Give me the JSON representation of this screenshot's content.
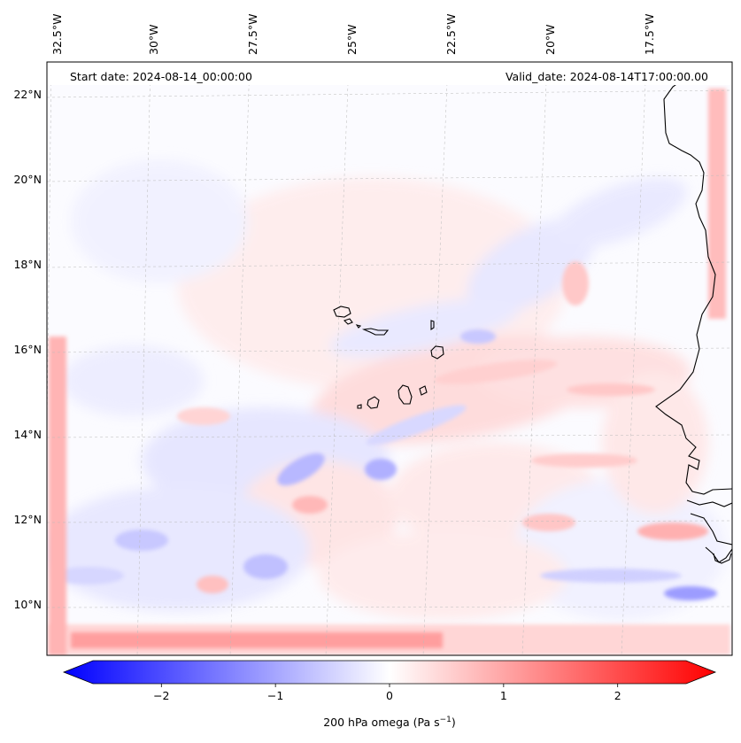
{
  "map": {
    "header": {
      "start_label": "Start date: 2024-08-14_00:00:00",
      "valid_label": "Valid_date: 2024-08-14T17:00:00.00"
    },
    "longitude_labels": [
      "32.5°W",
      "30°W",
      "27.5°W",
      "25°W",
      "22.5°W",
      "20°W",
      "17.5°W"
    ],
    "latitude_labels": [
      "22°N",
      "20°N",
      "18°N",
      "16°N",
      "14°N",
      "12°N",
      "10°N"
    ],
    "field": {
      "variable": "200 hPa omega",
      "units": "Pa s⁻¹",
      "colormap": "bwr",
      "negative_color": "#0000ff",
      "neutral_color": "#ffffff",
      "positive_color": "#ff0000"
    },
    "coastline_color": "#000000",
    "colorbar": {
      "min": -2.6,
      "max": 2.6,
      "ticks": [
        -2,
        -1,
        0,
        1,
        2
      ],
      "tick_labels": [
        "−2",
        "−1",
        "0",
        "1",
        "2"
      ],
      "label_text": "200 hPa omega (Pa s",
      "label_exponent": "−1",
      "label_close": ")"
    }
  }
}
